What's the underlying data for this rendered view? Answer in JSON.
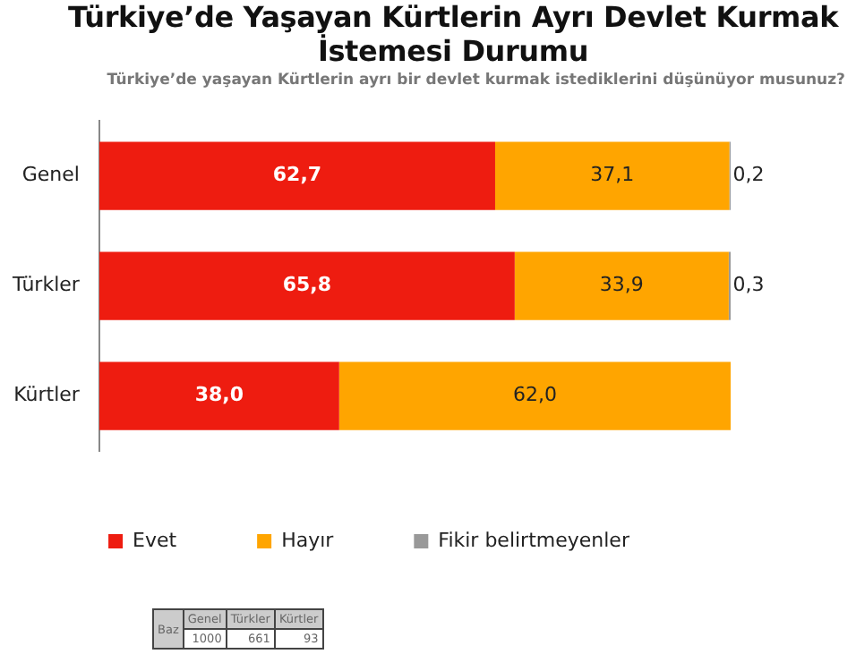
{
  "chart_data": {
    "type": "bar",
    "orientation": "horizontal",
    "stacked": true,
    "title": "Türkiye’de Yaşayan Kürtlerin Ayrı Devlet Kurmak İstemesi Durumu",
    "subtitle": "Türkiye’de yaşayan Kürtlerin ayrı bir devlet kurmak istediklerini düşünüyor musunuz?",
    "categories": [
      "Genel",
      "Türkler",
      "Kürtler"
    ],
    "series": [
      {
        "name": "Evet",
        "color": "#ee1c10",
        "values": [
          62.7,
          65.8,
          38.0
        ],
        "value_labels": [
          "62,7",
          "65,8",
          "38,0"
        ]
      },
      {
        "name": "Hayır",
        "color": "#ffa500",
        "values": [
          37.1,
          33.9,
          62.0
        ],
        "value_labels": [
          "37,1",
          "33,9",
          "62,0"
        ]
      },
      {
        "name": "Fikir belirtmeyenler",
        "color": "#999999",
        "values": [
          0.2,
          0.3,
          null
        ],
        "value_labels": [
          "0,2",
          "0,3",
          null
        ]
      }
    ],
    "xlim": [
      0,
      100
    ],
    "tick_labels": "y",
    "legend": "bottom",
    "annotations": [
      "Baz",
      "Genel",
      "Türkler",
      "Kürtler",
      "1000",
      "661",
      "93"
    ]
  }
}
